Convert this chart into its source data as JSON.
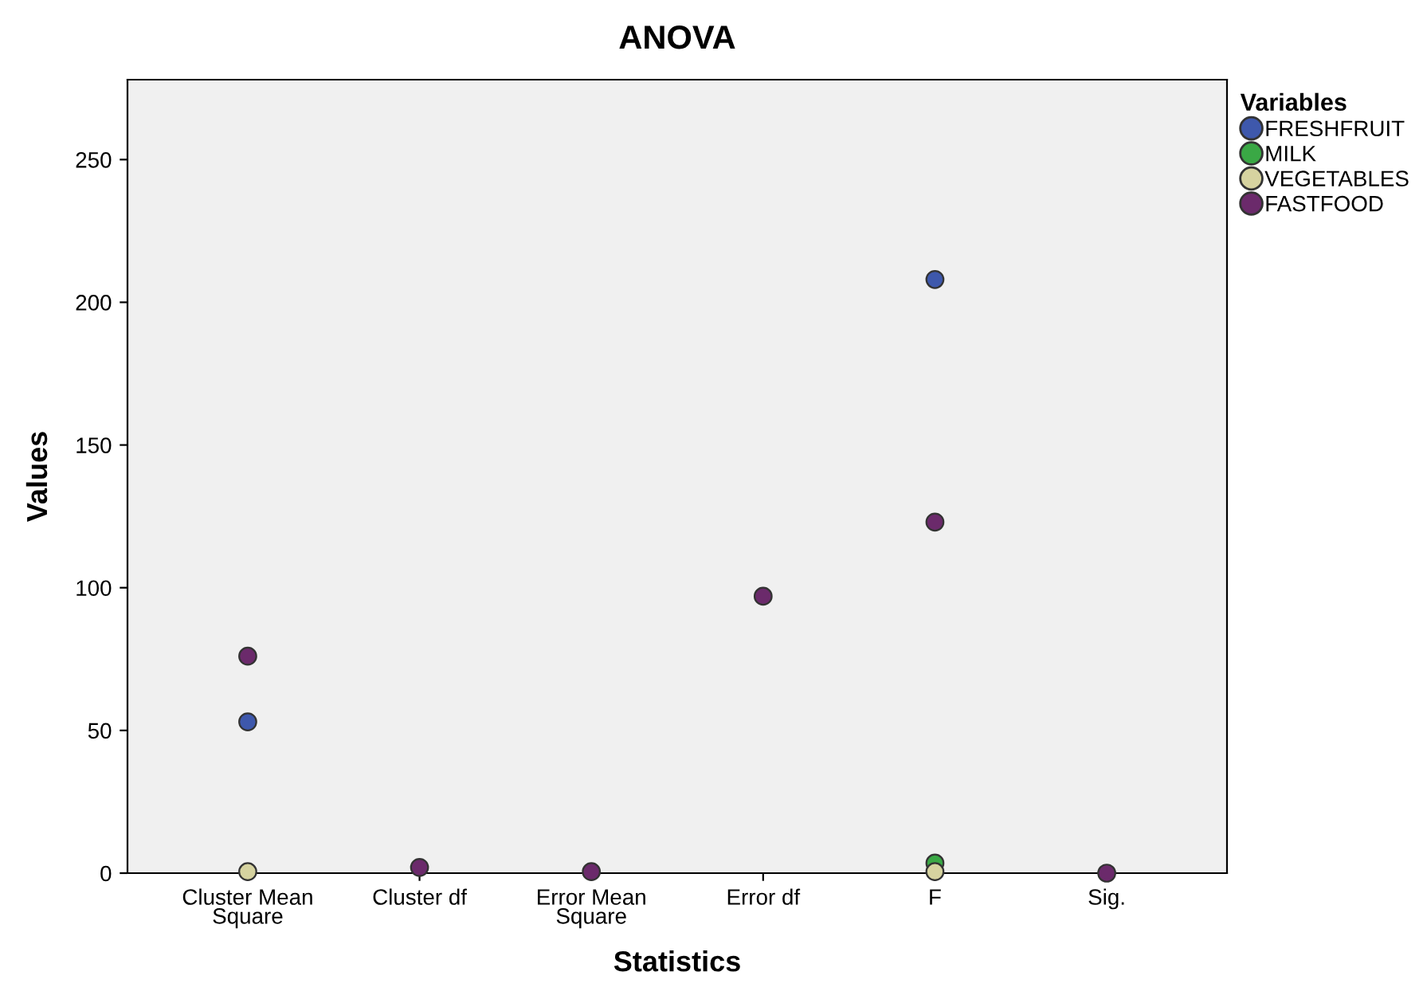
{
  "chart_data": {
    "type": "scatter",
    "title": "ANOVA",
    "xlabel": "Statistics",
    "ylabel": "Values",
    "legend_title": "Variables",
    "categories": [
      "Cluster Mean\nSquare",
      "Cluster df",
      "Error Mean\nSquare",
      "Error df",
      "F",
      "Sig."
    ],
    "series": [
      {
        "name": "FRESHFRUIT",
        "color": "#3e58ac",
        "values": [
          53,
          null,
          null,
          null,
          208,
          null
        ]
      },
      {
        "name": "MILK",
        "color": "#3aa845",
        "values": [
          null,
          null,
          null,
          null,
          3.5,
          null
        ]
      },
      {
        "name": "VEGETABLES",
        "color": "#d6d3a0",
        "values": [
          0.5,
          null,
          null,
          null,
          0.5,
          null
        ]
      },
      {
        "name": "FASTFOOD",
        "color": "#6b2a6b",
        "values": [
          76,
          2,
          0.5,
          97,
          123,
          0
        ]
      }
    ],
    "ylim": [
      0,
      278
    ],
    "yticks": [
      0,
      50,
      100,
      150,
      200,
      250
    ],
    "grid": false,
    "legend": "top right",
    "marker": "circle"
  }
}
